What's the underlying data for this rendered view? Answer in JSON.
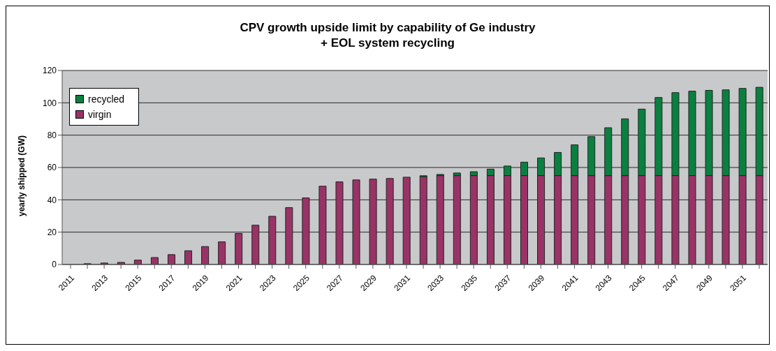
{
  "chart_data": {
    "type": "bar",
    "title": "CPV growth upside limit by capability of Ge industry\n+ EOL system recycling",
    "ylabel": "yearly shipped (GW)",
    "categories": [
      "2011",
      null,
      "2013",
      null,
      "2015",
      null,
      "2017",
      null,
      "2019",
      null,
      "2021",
      null,
      "2023",
      null,
      "2025",
      null,
      "2027",
      null,
      "2029",
      null,
      "2031",
      null,
      "2033",
      null,
      "2035",
      null,
      "2037",
      null,
      "2039",
      null,
      "2041",
      null,
      "2043",
      null,
      "2045",
      null,
      "2047",
      null,
      "2049",
      null,
      "2051",
      null
    ],
    "stacked": true,
    "series": [
      {
        "name": "virgin",
        "color": "#993366",
        "values": [
          0,
          0.5,
          0.9,
          1.3,
          2.7,
          4.3,
          6.1,
          8.5,
          11.1,
          14.0,
          19.2,
          24.3,
          29.8,
          35.2,
          41.2,
          48.4,
          51.1,
          52.3,
          52.8,
          53.2,
          54.0,
          54.3,
          55,
          55,
          55,
          55,
          55,
          55,
          55,
          55,
          55,
          55,
          55,
          55,
          55,
          55,
          55,
          55,
          55,
          55,
          55,
          55
        ]
      },
      {
        "name": "recycled",
        "color": "#0a8040",
        "values": [
          0,
          0,
          0,
          0,
          0,
          0,
          0,
          0,
          0,
          0,
          0,
          0,
          0,
          0,
          0,
          0,
          0,
          0,
          0,
          0,
          0,
          0.6,
          0.7,
          1.6,
          2.4,
          4.0,
          5.9,
          8.3,
          10.9,
          14.3,
          19.0,
          24.1,
          29.6,
          35.1,
          41.1,
          48.3,
          51.3,
          52.2,
          52.7,
          53.0,
          53.9,
          54.6
        ]
      }
    ],
    "ylim": [
      0,
      120
    ],
    "yticks": [
      0,
      20,
      40,
      60,
      80,
      100,
      120
    ],
    "grid": "y",
    "legend": "top left"
  }
}
